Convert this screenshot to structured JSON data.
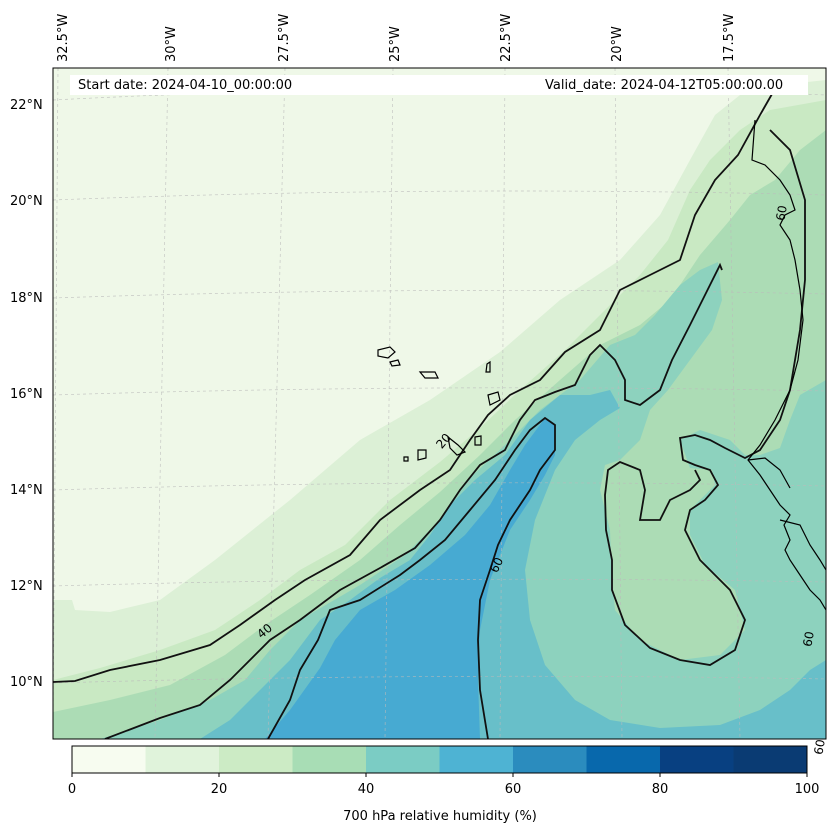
{
  "header": {
    "start_date": "Start date: 2024-04-10_00:00:00",
    "valid_date": "Valid_date: 2024-04-12T05:00:00.00"
  },
  "longitude_labels": [
    "32.5°W",
    "30°W",
    "27.5°W",
    "25°W",
    "22.5°W",
    "20°W",
    "17.5°W"
  ],
  "latitude_labels": [
    "22°N",
    "20°N",
    "18°N",
    "16°N",
    "14°N",
    "12°N",
    "10°N"
  ],
  "contour_labels": [
    "20",
    "40",
    "60",
    "60",
    "60",
    "60"
  ],
  "colorbar": {
    "title": "700 hPa relative humidity (%)",
    "ticks": [
      "0",
      "20",
      "40",
      "60",
      "80",
      "100"
    ],
    "levels": [
      0,
      10,
      20,
      30,
      40,
      50,
      60,
      70,
      80,
      90,
      100
    ],
    "colors": [
      "#f7fcf0",
      "#e0f3db",
      "#ccebc5",
      "#a8ddb5",
      "#7bccc4",
      "#4eb3d3",
      "#2b8cbe",
      "#0868ac",
      "#084081",
      "#0a3b73"
    ]
  },
  "map": {
    "field": "700 hPa relative humidity",
    "units": "%",
    "lon_range": [
      "32.5°W",
      "16°W"
    ],
    "lat_range": [
      "9°N",
      "23°N"
    ],
    "gridlines": true
  }
}
